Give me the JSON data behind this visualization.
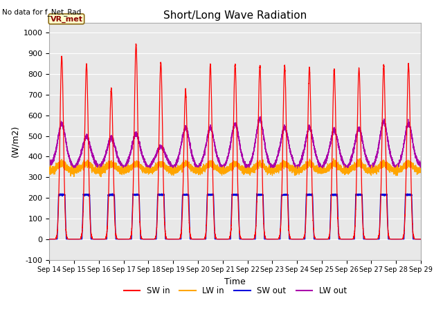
{
  "title": "Short/Long Wave Radiation",
  "no_data_label": "No data for f_Net_Rad",
  "xlabel": "Time",
  "ylabel": "(W/m2)",
  "ylim": [
    -100,
    1050
  ],
  "xlim": [
    0,
    15
  ],
  "background_color": "#e8e8e8",
  "legend_station": "VR_met",
  "x_tick_labels": [
    "Sep 14",
    "Sep 15",
    "Sep 16",
    "Sep 17",
    "Sep 18",
    "Sep 19",
    "Sep 20",
    "Sep 21",
    "Sep 22",
    "Sep 23",
    "Sep 24",
    "Sep 25",
    "Sep 26",
    "Sep 27",
    "Sep 28",
    "Sep 29"
  ],
  "series": {
    "SW_in": {
      "color": "#ff0000",
      "label": "SW in"
    },
    "LW_in": {
      "color": "#ffa500",
      "label": "LW in"
    },
    "SW_out": {
      "color": "#0000dd",
      "label": "SW out"
    },
    "LW_out": {
      "color": "#aa00aa",
      "label": "LW out"
    }
  },
  "fig_width": 6.4,
  "fig_height": 4.8,
  "dpi": 100
}
